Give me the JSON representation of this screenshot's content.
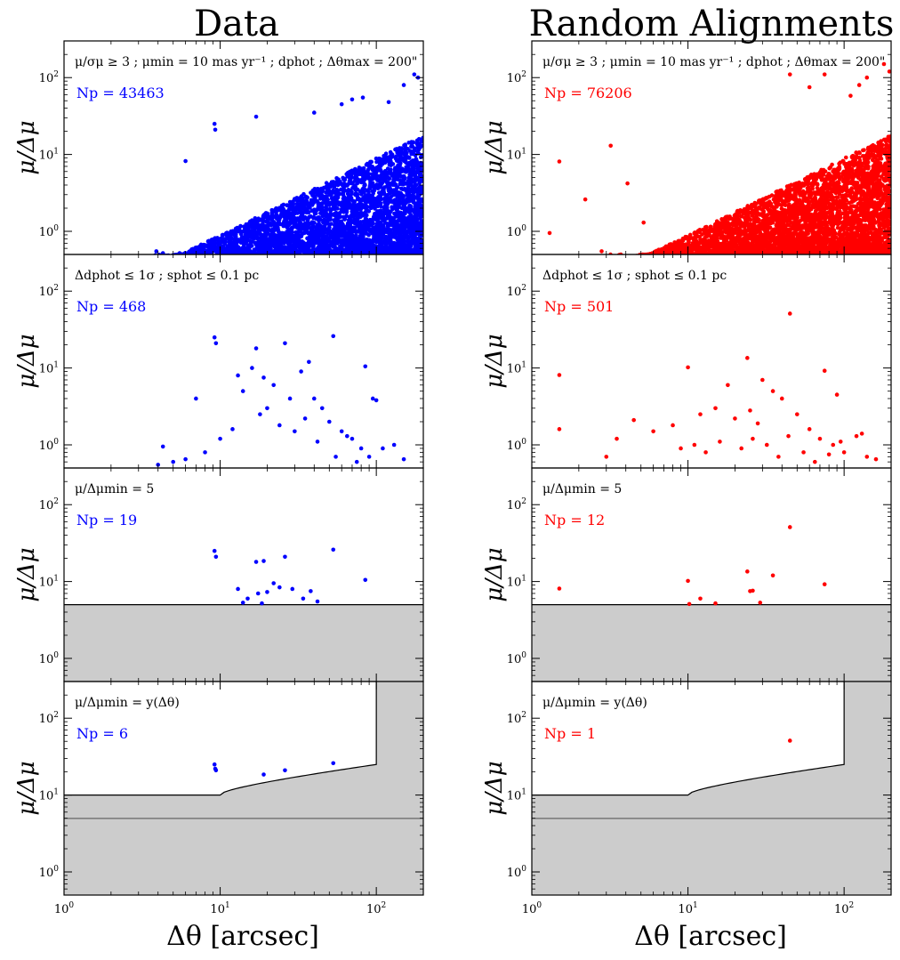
{
  "figure": {
    "col_titles": [
      "Data",
      "Random Alignments"
    ],
    "col_colors": [
      "#0000ff",
      "#ff0000"
    ],
    "shade_color": "#cccccc",
    "xlabel": "Δθ [arcsec]",
    "ylabel": "μ/Δμ",
    "x_ticks": [
      {
        "v": 1,
        "base": "10",
        "exp": "0"
      },
      {
        "v": 10,
        "base": "10",
        "exp": "1"
      },
      {
        "v": 100,
        "base": "10",
        "exp": "2"
      }
    ],
    "y_ticks": [
      {
        "v": 1,
        "base": "10",
        "exp": "0"
      },
      {
        "v": 10,
        "base": "10",
        "exp": "1"
      },
      {
        "v": 100,
        "base": "10",
        "exp": "2"
      }
    ],
    "row_annotations": [
      "μ/σμ ≥ 3 ; μmin = 10 mas yr⁻¹ ; dphot ; Δθmax = 200\"",
      "Δdphot ≤ 1σ ; sphot ≤ 0.1 pc",
      "μ/Δμmin = 5",
      "μ/Δμmin = y(Δθ)"
    ],
    "np_labels": {
      "data": [
        "Np = 43463",
        "Np = 468",
        "Np = 19",
        "Np = 6"
      ],
      "random": [
        "Np = 76206",
        "Np = 501",
        "Np = 12",
        "Np = 1"
      ]
    }
  },
  "chart_data": [
    {
      "type": "scatter",
      "panel": "data-row1",
      "series_color": "#0000ff",
      "xscale": "log",
      "yscale": "log",
      "xlim": [
        1,
        200
      ],
      "ylim": [
        0.5,
        300
      ],
      "xlabel": "Δθ [arcsec]",
      "ylabel": "μ/Δμ",
      "np": 43463,
      "density_model": "increasing with Δθ, threshold μ/Δμ ≈ 0.05·Δθ",
      "outliers": [
        [
          6,
          8.2
        ],
        [
          9.2,
          25
        ],
        [
          9.3,
          21
        ],
        [
          17,
          31
        ],
        [
          3.9,
          0.55
        ],
        [
          4.3,
          0.52
        ],
        [
          5.5,
          0.52
        ],
        [
          70,
          52
        ],
        [
          82,
          55
        ],
        [
          120,
          48
        ],
        [
          175,
          110
        ],
        [
          185,
          100
        ],
        [
          150,
          80
        ],
        [
          60,
          45
        ],
        [
          40,
          35
        ]
      ]
    },
    {
      "type": "scatter",
      "panel": "random-row1",
      "series_color": "#ff0000",
      "xscale": "log",
      "yscale": "log",
      "xlim": [
        1,
        200
      ],
      "ylim": [
        0.5,
        300
      ],
      "np": 76206,
      "density_model": "increasing with Δθ, threshold μ/Δμ ≈ 0.05·Δθ",
      "outliers": [
        [
          1.5,
          8.1
        ],
        [
          2.2,
          2.6
        ],
        [
          1.3,
          0.95
        ],
        [
          2.8,
          0.55
        ],
        [
          3.2,
          13
        ],
        [
          4.1,
          4.2
        ],
        [
          5.2,
          1.3
        ],
        [
          45,
          110
        ],
        [
          60,
          75
        ],
        [
          75,
          110
        ],
        [
          125,
          80
        ],
        [
          140,
          100
        ],
        [
          180,
          150
        ],
        [
          195,
          120
        ],
        [
          110,
          58
        ]
      ]
    },
    {
      "type": "scatter",
      "panel": "data-row2",
      "series_color": "#0000ff",
      "xscale": "log",
      "yscale": "log",
      "xlim": [
        1,
        200
      ],
      "ylim": [
        0.5,
        300
      ],
      "np": 468,
      "points": [
        [
          9.2,
          25
        ],
        [
          9.4,
          21
        ],
        [
          17,
          18
        ],
        [
          26,
          21
        ],
        [
          53,
          26
        ],
        [
          37,
          12
        ],
        [
          85,
          10.5
        ],
        [
          7,
          4
        ],
        [
          13,
          8
        ],
        [
          14,
          5
        ],
        [
          16,
          10
        ],
        [
          19,
          7.5
        ],
        [
          22,
          6
        ],
        [
          28,
          4
        ],
        [
          33,
          9
        ],
        [
          40,
          4
        ],
        [
          45,
          3
        ],
        [
          95,
          4
        ],
        [
          100,
          3.8
        ],
        [
          130,
          1
        ],
        [
          50,
          2
        ],
        [
          60,
          1.5
        ],
        [
          70,
          1.2
        ],
        [
          80,
          0.9
        ],
        [
          4.3,
          0.95
        ],
        [
          4,
          0.55
        ],
        [
          5,
          0.6
        ],
        [
          6,
          0.65
        ],
        [
          8,
          0.8
        ],
        [
          10,
          1.2
        ],
        [
          12,
          1.6
        ],
        [
          18,
          2.5
        ],
        [
          20,
          3
        ],
        [
          24,
          1.8
        ],
        [
          30,
          1.5
        ],
        [
          35,
          2.2
        ],
        [
          42,
          1.1
        ],
        [
          55,
          0.7
        ],
        [
          65,
          1.3
        ],
        [
          75,
          0.6
        ],
        [
          90,
          0.7
        ],
        [
          110,
          0.9
        ],
        [
          150,
          0.65
        ]
      ]
    },
    {
      "type": "scatter",
      "panel": "random-row2",
      "series_color": "#ff0000",
      "xscale": "log",
      "yscale": "log",
      "xlim": [
        1,
        200
      ],
      "ylim": [
        0.5,
        300
      ],
      "np": 501,
      "points": [
        [
          1.5,
          8.1
        ],
        [
          1.5,
          1.6
        ],
        [
          45,
          51
        ],
        [
          10,
          10.2
        ],
        [
          24,
          13.5
        ],
        [
          18,
          6
        ],
        [
          30,
          7
        ],
        [
          35,
          5
        ],
        [
          40,
          4
        ],
        [
          75,
          9.2
        ],
        [
          90,
          4.5
        ],
        [
          4.5,
          2.1
        ],
        [
          3,
          0.7
        ],
        [
          3.5,
          1.2
        ],
        [
          6,
          1.5
        ],
        [
          8,
          1.8
        ],
        [
          12,
          2.5
        ],
        [
          15,
          3
        ],
        [
          20,
          2.2
        ],
        [
          25,
          2.8
        ],
        [
          28,
          1.9
        ],
        [
          50,
          2.5
        ],
        [
          60,
          1.6
        ],
        [
          70,
          1.2
        ],
        [
          85,
          1.0
        ],
        [
          100,
          0.8
        ],
        [
          120,
          1.3
        ],
        [
          140,
          0.7
        ],
        [
          160,
          0.65
        ],
        [
          130,
          1.4
        ],
        [
          9,
          0.9
        ],
        [
          11,
          1.0
        ],
        [
          13,
          0.8
        ],
        [
          16,
          1.1
        ],
        [
          22,
          0.9
        ],
        [
          26,
          1.2
        ],
        [
          32,
          1.0
        ],
        [
          38,
          0.7
        ],
        [
          44,
          1.3
        ],
        [
          55,
          0.8
        ],
        [
          65,
          0.6
        ],
        [
          80,
          0.75
        ],
        [
          95,
          1.1
        ]
      ]
    },
    {
      "type": "scatter",
      "panel": "data-row3",
      "series_color": "#0000ff",
      "xscale": "log",
      "yscale": "log",
      "xlim": [
        1,
        200
      ],
      "ylim": [
        0.5,
        300
      ],
      "threshold": 5,
      "np": 19,
      "points": [
        [
          9.2,
          25
        ],
        [
          9.4,
          21
        ],
        [
          17,
          18
        ],
        [
          19,
          18.5
        ],
        [
          26,
          21
        ],
        [
          53,
          26
        ],
        [
          85,
          10.5
        ],
        [
          13,
          8
        ],
        [
          14,
          5.3
        ],
        [
          15,
          6
        ],
        [
          17.5,
          7
        ],
        [
          18.5,
          5.2
        ],
        [
          20,
          7.3
        ],
        [
          22,
          9.5
        ],
        [
          24,
          8.4
        ],
        [
          29,
          8
        ],
        [
          34,
          6
        ],
        [
          38,
          7.5
        ],
        [
          42,
          5.5
        ]
      ]
    },
    {
      "type": "scatter",
      "panel": "random-row3",
      "series_color": "#ff0000",
      "xscale": "log",
      "yscale": "log",
      "xlim": [
        1,
        200
      ],
      "ylim": [
        0.5,
        300
      ],
      "threshold": 5,
      "np": 12,
      "points": [
        [
          1.5,
          8.1
        ],
        [
          45,
          51
        ],
        [
          10,
          10.2
        ],
        [
          10.2,
          5.1
        ],
        [
          12,
          6
        ],
        [
          15,
          5.2
        ],
        [
          24,
          13.5
        ],
        [
          25,
          7.5
        ],
        [
          26,
          7.6
        ],
        [
          29,
          5.3
        ],
        [
          35,
          12
        ],
        [
          75,
          9.2
        ]
      ]
    },
    {
      "type": "scatter",
      "panel": "data-row4",
      "series_color": "#0000ff",
      "xscale": "log",
      "yscale": "log",
      "xlim": [
        1,
        200
      ],
      "ylim": [
        0.5,
        300
      ],
      "threshold": 5,
      "curve_flat_until": 10,
      "curve_flat_value": 10,
      "curve_at_100": 25,
      "np": 6,
      "points": [
        [
          9.2,
          25
        ],
        [
          9.3,
          22
        ],
        [
          19,
          18.5
        ],
        [
          26,
          21
        ],
        [
          53,
          26
        ],
        [
          9.4,
          21
        ]
      ]
    },
    {
      "type": "scatter",
      "panel": "random-row4",
      "series_color": "#ff0000",
      "xscale": "log",
      "yscale": "log",
      "xlim": [
        1,
        200
      ],
      "ylim": [
        0.5,
        300
      ],
      "threshold": 5,
      "curve_flat_until": 10,
      "curve_flat_value": 10,
      "curve_at_100": 25,
      "np": 1,
      "points": [
        [
          45,
          51
        ]
      ]
    }
  ]
}
